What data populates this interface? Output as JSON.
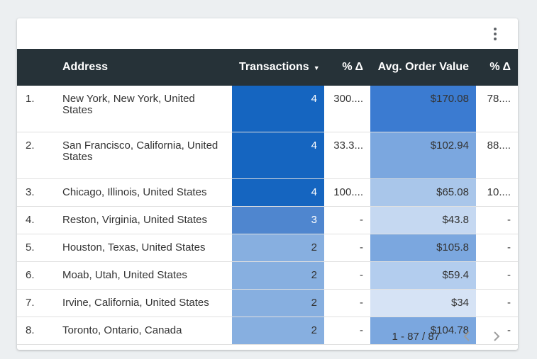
{
  "table": {
    "columns": {
      "address": "Address",
      "transactions": "Transactions",
      "transactions_pct": "% Δ",
      "avg_order_value": "Avg. Order Value",
      "aov_pct": "% Δ"
    },
    "sort_icon": "sort-descending-icon",
    "rows": [
      {
        "index": "1.",
        "address": "New York, New York, United States",
        "transactions": "4",
        "transactions_pct": "300....",
        "avg_order_value": "$170.08",
        "aov_pct": "78...."
      },
      {
        "index": "2.",
        "address": "San Francisco, California, United States",
        "transactions": "4",
        "transactions_pct": "33.3...",
        "avg_order_value": "$102.94",
        "aov_pct": "88...."
      },
      {
        "index": "3.",
        "address": "Chicago, Illinois, United States",
        "transactions": "4",
        "transactions_pct": "100....",
        "avg_order_value": "$65.08",
        "aov_pct": "10...."
      },
      {
        "index": "4.",
        "address": "Reston, Virginia, United States",
        "transactions": "3",
        "transactions_pct": "-",
        "avg_order_value": "$43.8",
        "aov_pct": "-"
      },
      {
        "index": "5.",
        "address": "Houston, Texas, United States",
        "transactions": "2",
        "transactions_pct": "-",
        "avg_order_value": "$105.8",
        "aov_pct": "-"
      },
      {
        "index": "6.",
        "address": "Moab, Utah, United States",
        "transactions": "2",
        "transactions_pct": "-",
        "avg_order_value": "$59.4",
        "aov_pct": "-"
      },
      {
        "index": "7.",
        "address": "Irvine, California, United States",
        "transactions": "2",
        "transactions_pct": "-",
        "avg_order_value": "$34",
        "aov_pct": "-"
      },
      {
        "index": "8.",
        "address": "Toronto, Ontario, Canada",
        "transactions": "2",
        "transactions_pct": "-",
        "avg_order_value": "$104.78",
        "aov_pct": "-"
      }
    ]
  },
  "pagination": {
    "range": "1 - 87 / 87",
    "prev_icon": "chevron-left-icon",
    "next_icon": "chevron-right-icon"
  },
  "menu_icon": "more-vert-icon",
  "colors": {
    "header_bg": "#263238",
    "heat_max": "#1565c0",
    "heat_mid": "#4f86cf",
    "heat_low": "#87afe0",
    "aov_max": "#3b7bd1",
    "aov_high": "#7ba7df",
    "aov_mid": "#a9c6ea",
    "aov_low": "#c5d8f1",
    "aov_min": "#d6e3f5"
  }
}
